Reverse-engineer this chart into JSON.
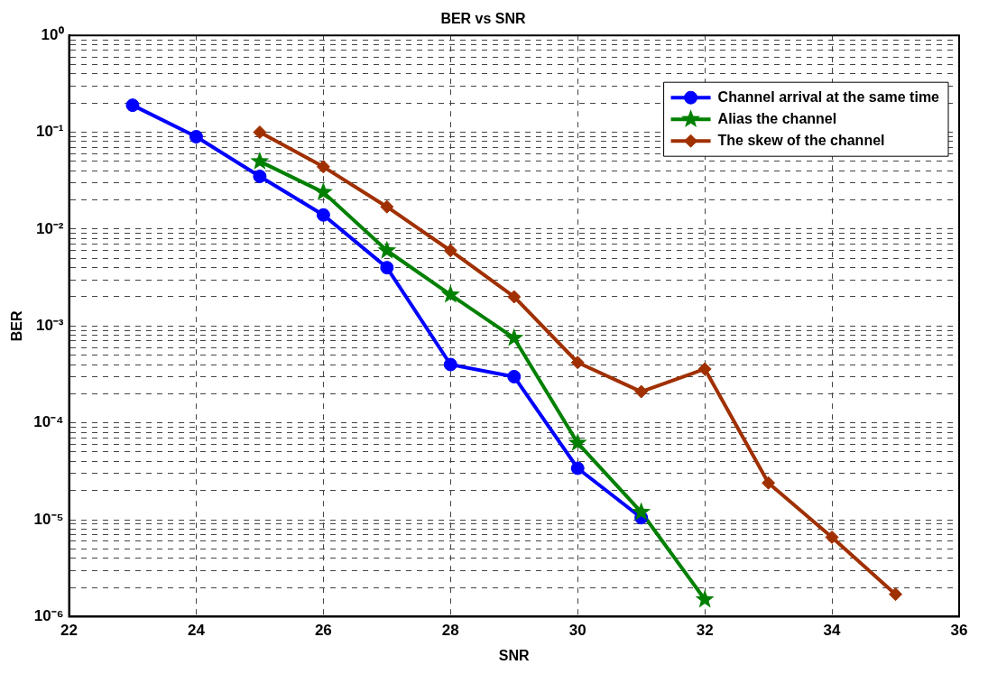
{
  "chart_data": {
    "type": "line",
    "title": "BER vs SNR",
    "xlabel": "SNR",
    "ylabel": "BER",
    "log": "y",
    "grid": true,
    "legend": "top right",
    "line_style": "solid",
    "xlim": [
      22,
      36
    ],
    "xticks": [
      22,
      24,
      26,
      28,
      30,
      32,
      34,
      36
    ],
    "ylim": [
      1e-06,
      1
    ],
    "yticks": [
      {
        "value": 1e-06,
        "label": "10⁻⁶"
      },
      {
        "value": 2e-06,
        "label": null
      },
      {
        "value": 3e-06,
        "label": null
      },
      {
        "value": 4e-06,
        "label": null
      },
      {
        "value": 5e-06,
        "label": null
      },
      {
        "value": 6e-06,
        "label": null
      },
      {
        "value": 7e-06,
        "label": null
      },
      {
        "value": 8e-06,
        "label": null
      },
      {
        "value": 9e-06,
        "label": null
      },
      {
        "value": 1e-05,
        "label": "10⁻⁵"
      },
      {
        "value": 2e-05,
        "label": null
      },
      {
        "value": 3e-05,
        "label": null
      },
      {
        "value": 4e-05,
        "label": null
      },
      {
        "value": 5e-05,
        "label": null
      },
      {
        "value": 6e-05,
        "label": null
      },
      {
        "value": 7e-05,
        "label": null
      },
      {
        "value": 8e-05,
        "label": null
      },
      {
        "value": 9e-05,
        "label": null
      },
      {
        "value": 0.0001,
        "label": "10⁻⁴"
      },
      {
        "value": 0.0002,
        "label": null
      },
      {
        "value": 0.0003,
        "label": null
      },
      {
        "value": 0.0004,
        "label": null
      },
      {
        "value": 0.0005,
        "label": null
      },
      {
        "value": 0.0006,
        "label": null
      },
      {
        "value": 0.0007,
        "label": null
      },
      {
        "value": 0.0008,
        "label": null
      },
      {
        "value": 0.0009,
        "label": null
      },
      {
        "value": 0.001,
        "label": "10⁻³"
      },
      {
        "value": 0.002,
        "label": null
      },
      {
        "value": 0.003,
        "label": null
      },
      {
        "value": 0.004,
        "label": null
      },
      {
        "value": 0.005,
        "label": null
      },
      {
        "value": 0.006,
        "label": null
      },
      {
        "value": 0.007,
        "label": null
      },
      {
        "value": 0.008,
        "label": null
      },
      {
        "value": 0.009,
        "label": null
      },
      {
        "value": 0.01,
        "label": "10⁻²"
      },
      {
        "value": 0.02,
        "label": null
      },
      {
        "value": 0.03,
        "label": null
      },
      {
        "value": 0.04,
        "label": null
      },
      {
        "value": 0.05,
        "label": null
      },
      {
        "value": 0.06,
        "label": null
      },
      {
        "value": 0.07,
        "label": null
      },
      {
        "value": 0.08,
        "label": null
      },
      {
        "value": 0.09,
        "label": null
      },
      {
        "value": 0.1,
        "label": "10⁻¹"
      },
      {
        "value": 0.2,
        "label": null
      },
      {
        "value": 0.3,
        "label": null
      },
      {
        "value": 0.4,
        "label": null
      },
      {
        "value": 0.5,
        "label": null
      },
      {
        "value": 0.6,
        "label": null
      },
      {
        "value": 0.7,
        "label": null
      },
      {
        "value": 0.8,
        "label": null
      },
      {
        "value": 0.9,
        "label": null
      },
      {
        "value": 1,
        "label": "10⁰"
      }
    ],
    "series": [
      {
        "name": "Channel arrival at the same time",
        "color": "#0000ff",
        "marker": "circle",
        "x": [
          23,
          24,
          25,
          26,
          27,
          28,
          29,
          30,
          31
        ],
        "values": [
          0.19,
          0.09,
          0.035,
          0.014,
          0.004,
          0.0004,
          0.0003,
          3.4e-05,
          1.05e-05
        ]
      },
      {
        "name": "Alias the channel",
        "color": "#008000",
        "marker": "star",
        "x": [
          25,
          26,
          27,
          28,
          29,
          30,
          31,
          32
        ],
        "values": [
          0.05,
          0.024,
          0.006,
          0.0021,
          0.00075,
          6.2e-05,
          1.2e-05,
          1.5e-06
        ]
      },
      {
        "name": "The skew of the channel",
        "color": "#a03000",
        "marker": "diamond",
        "x": [
          25,
          26,
          27,
          28,
          29,
          30,
          31,
          32,
          33,
          34,
          35
        ],
        "values": [
          0.1,
          0.044,
          0.017,
          0.006,
          0.002,
          0.00042,
          0.00021,
          0.00036,
          2.4e-05,
          6.6e-06,
          1.7e-06
        ]
      }
    ]
  }
}
